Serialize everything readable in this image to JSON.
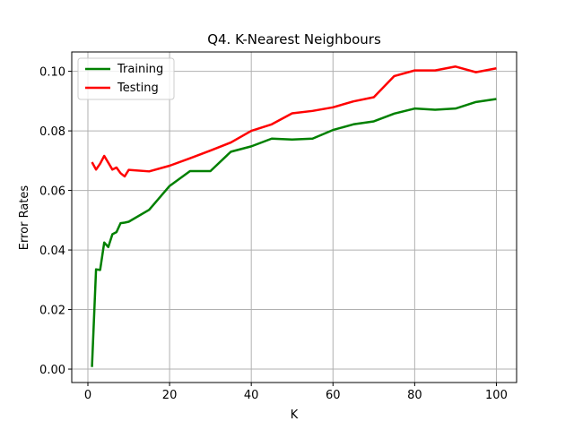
{
  "chart_data": {
    "type": "line",
    "title": "Q4. K-Nearest Neighbours",
    "xlabel": "K",
    "ylabel": "Error Rates",
    "xlim": [
      -3.95,
      104.95
    ],
    "ylim": [
      -0.0045,
      0.1065
    ],
    "xticks": [
      0,
      20,
      40,
      60,
      80,
      100
    ],
    "yticks": [
      0.0,
      0.02,
      0.04,
      0.06,
      0.08,
      0.1
    ],
    "xtick_labels": [
      "0",
      "20",
      "40",
      "60",
      "80",
      "100"
    ],
    "ytick_labels": [
      "0.00",
      "0.02",
      "0.04",
      "0.06",
      "0.08",
      "0.10"
    ],
    "grid": true,
    "legend_position": "top-left",
    "series": [
      {
        "name": "Training",
        "color": "#008000",
        "x": [
          1,
          2,
          3,
          4,
          5,
          6,
          7,
          8,
          9,
          10,
          15,
          20,
          25,
          30,
          35,
          40,
          45,
          50,
          55,
          60,
          65,
          70,
          75,
          80,
          85,
          90,
          95,
          100
        ],
        "y": [
          0.0007,
          0.0335,
          0.0333,
          0.0425,
          0.041,
          0.0453,
          0.046,
          0.049,
          0.0492,
          0.0495,
          0.0535,
          0.0615,
          0.0665,
          0.0665,
          0.073,
          0.0748,
          0.0774,
          0.0771,
          0.0774,
          0.0803,
          0.0822,
          0.0832,
          0.0858,
          0.0875,
          0.0871,
          0.0875,
          0.0897,
          0.0907
        ]
      },
      {
        "name": "Testing",
        "color": "#ff0000",
        "x": [
          1,
          2,
          3,
          4,
          5,
          6,
          7,
          8,
          9,
          10,
          15,
          20,
          25,
          30,
          35,
          40,
          45,
          50,
          55,
          60,
          65,
          70,
          75,
          80,
          85,
          90,
          95,
          100
        ],
        "y": [
          0.0695,
          0.067,
          0.069,
          0.0716,
          0.0693,
          0.067,
          0.0677,
          0.0658,
          0.0647,
          0.0669,
          0.0664,
          0.0683,
          0.0708,
          0.0734,
          0.0761,
          0.08,
          0.0822,
          0.0859,
          0.0867,
          0.0879,
          0.0899,
          0.0913,
          0.0984,
          0.1003,
          0.1003,
          0.1016,
          0.0997,
          0.101
        ]
      }
    ]
  }
}
